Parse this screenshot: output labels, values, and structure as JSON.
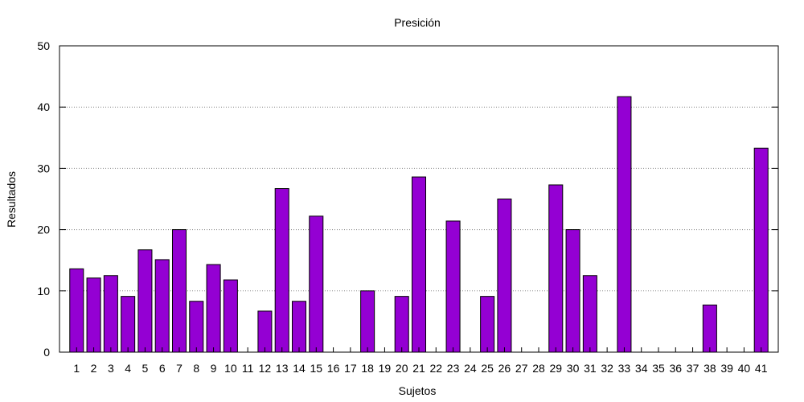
{
  "chart_data": {
    "type": "bar",
    "title": "Presición",
    "xlabel": "Sujetos",
    "ylabel": "Resultados",
    "ylim": [
      0,
      50
    ],
    "yticks": [
      0,
      10,
      20,
      30,
      40,
      50
    ],
    "grid": true,
    "categories": [
      "1",
      "2",
      "3",
      "4",
      "5",
      "6",
      "7",
      "8",
      "9",
      "10",
      "11",
      "12",
      "13",
      "14",
      "15",
      "16",
      "17",
      "18",
      "19",
      "20",
      "21",
      "22",
      "23",
      "24",
      "25",
      "26",
      "27",
      "28",
      "29",
      "30",
      "31",
      "32",
      "33",
      "34",
      "35",
      "36",
      "37",
      "38",
      "39",
      "40",
      "41"
    ],
    "values": [
      13.6,
      12.1,
      12.5,
      9.1,
      16.7,
      15.1,
      20.0,
      8.3,
      14.3,
      11.8,
      0,
      6.7,
      26.7,
      8.3,
      22.2,
      0,
      0,
      10.0,
      0,
      9.1,
      28.6,
      0,
      21.4,
      0,
      9.1,
      25.0,
      0,
      0,
      27.3,
      20.0,
      12.5,
      0,
      41.7,
      0,
      0,
      0,
      0,
      7.7,
      0,
      0,
      33.3
    ],
    "bar_color": "#9400d3"
  }
}
